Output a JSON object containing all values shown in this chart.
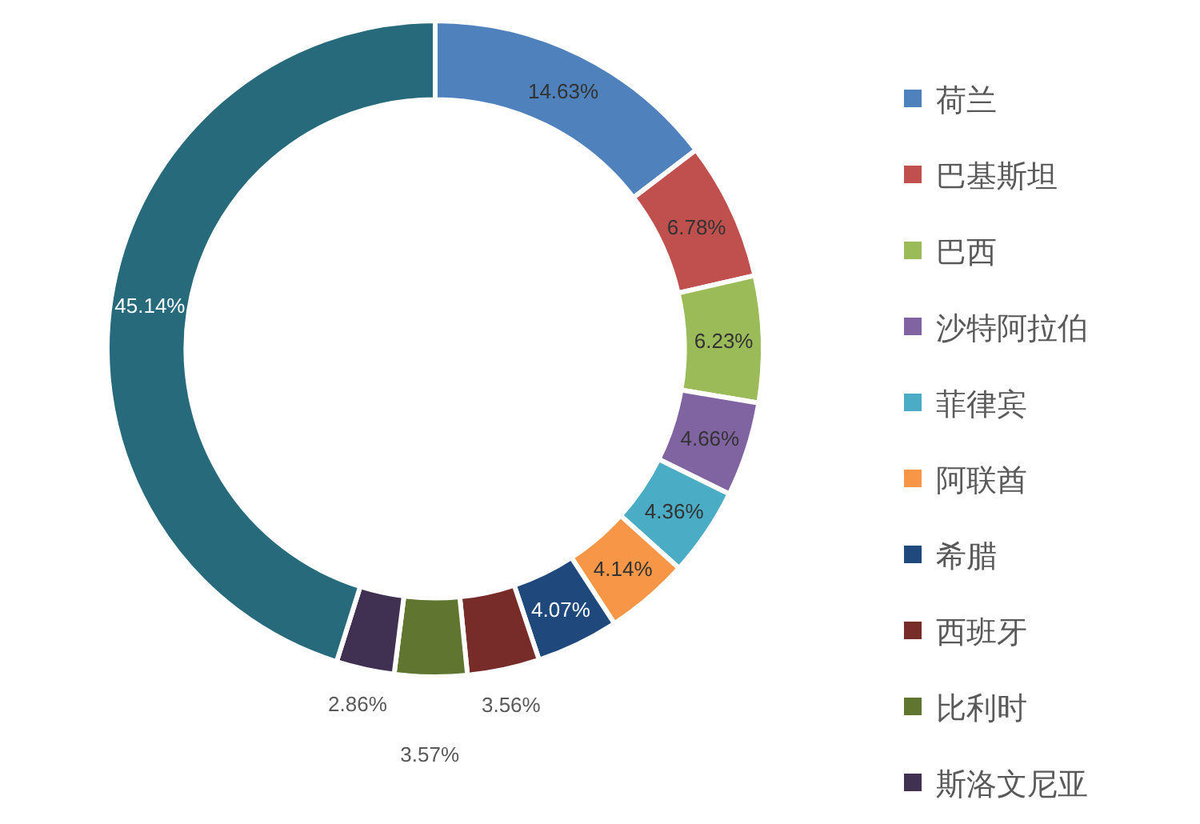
{
  "chart_data": {
    "type": "donut",
    "categories": [
      "荷兰",
      "巴基斯坦",
      "巴西",
      "沙特阿拉伯",
      "菲律宾",
      "阿联酋",
      "希腊",
      "西班牙",
      "比利时",
      "斯洛文尼亚",
      null
    ],
    "values": [
      14.63,
      6.78,
      6.23,
      4.66,
      4.36,
      4.14,
      4.07,
      3.56,
      3.57,
      2.86,
      45.14
    ],
    "colors": [
      "#4f81bd",
      "#c0504d",
      "#9bbb59",
      "#8064a2",
      "#4bacc6",
      "#f79646",
      "#1f497d",
      "#772c2a",
      "#5f7530",
      "#403152",
      "#276a7c"
    ],
    "value_labels": [
      "14.63%",
      "6.78%",
      "6.23%",
      "4.66%",
      "4.36%",
      "4.14%",
      "4.07%",
      "3.56%",
      "3.57%",
      "2.86%",
      "45.14%"
    ],
    "legend": "right"
  }
}
